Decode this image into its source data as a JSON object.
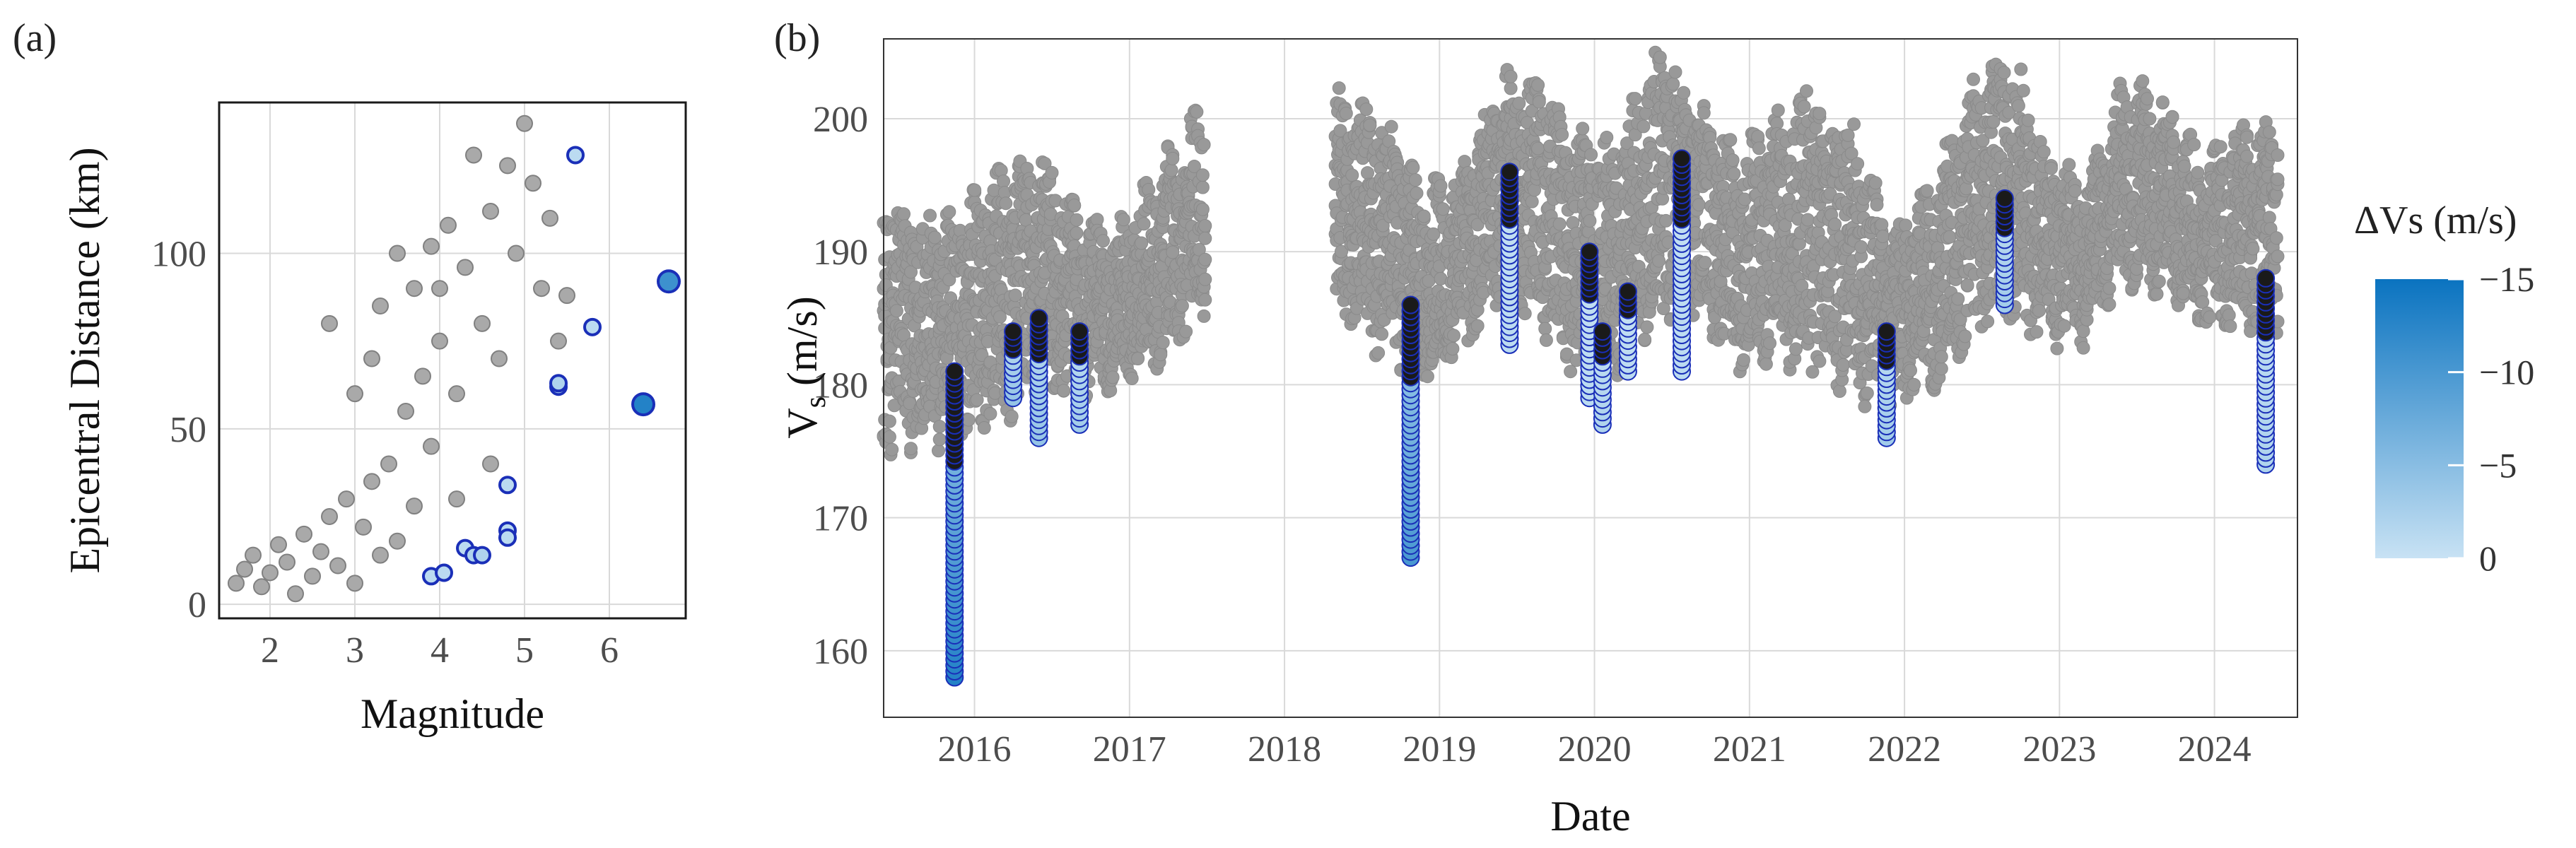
{
  "panels": {
    "a": {
      "label": "(a)"
    },
    "b": {
      "label": "(b)"
    }
  },
  "colors": {
    "background_points": "#a9a9a9",
    "background_stroke": "#808080",
    "panel_b_background_points": "#999999",
    "grid": "#d9d9d9",
    "frame": "#1a1a1a",
    "highlight_outline": "#1a2fb8",
    "colorbar_low": "#c8e2f4",
    "colorbar_high": "#0a73c0"
  },
  "chart_data": [
    {
      "type": "scatter",
      "panel": "(a)",
      "title": "",
      "xlabel": "Magnitude",
      "ylabel": "Epicentral Distance (km)",
      "xlim": [
        1.4,
        6.9
      ],
      "ylim": [
        -4,
        143
      ],
      "xticks": [
        2,
        3,
        4,
        5,
        6
      ],
      "yticks": [
        0,
        50,
        100
      ],
      "grid": true,
      "series": [
        {
          "role": "all events",
          "color": "#a9a9a9",
          "points": [
            [
              1.6,
              6
            ],
            [
              1.7,
              10
            ],
            [
              1.8,
              14
            ],
            [
              1.9,
              5
            ],
            [
              2.0,
              9
            ],
            [
              2.1,
              17
            ],
            [
              2.2,
              12
            ],
            [
              2.3,
              3
            ],
            [
              2.4,
              20
            ],
            [
              2.5,
              8
            ],
            [
              2.6,
              15
            ],
            [
              2.7,
              25
            ],
            [
              2.8,
              11
            ],
            [
              2.9,
              30
            ],
            [
              3.0,
              6
            ],
            [
              3.1,
              22
            ],
            [
              3.2,
              35
            ],
            [
              3.3,
              14
            ],
            [
              3.4,
              40
            ],
            [
              3.5,
              18
            ],
            [
              3.6,
              55
            ],
            [
              3.7,
              28
            ],
            [
              3.8,
              65
            ],
            [
              3.9,
              45
            ],
            [
              4.0,
              75
            ],
            [
              4.0,
              90
            ],
            [
              4.1,
              108
            ],
            [
              4.2,
              60
            ],
            [
              4.3,
              96
            ],
            [
              4.4,
              128
            ],
            [
              4.5,
              80
            ],
            [
              4.6,
              112
            ],
            [
              4.7,
              70
            ],
            [
              4.8,
              125
            ],
            [
              4.9,
              100
            ],
            [
              5.0,
              137
            ],
            [
              5.1,
              120
            ],
            [
              5.2,
              90
            ],
            [
              5.3,
              110
            ],
            [
              5.4,
              75
            ],
            [
              3.3,
              85
            ],
            [
              3.5,
              100
            ],
            [
              3.7,
              90
            ],
            [
              3.9,
              102
            ],
            [
              4.2,
              30
            ],
            [
              4.6,
              40
            ],
            [
              2.7,
              80
            ],
            [
              3.0,
              60
            ],
            [
              3.2,
              70
            ],
            [
              5.5,
              88
            ]
          ]
        },
        {
          "role": "highlighted events",
          "points": [
            {
              "x": 3.9,
              "y": 8,
              "dvs": 1
            },
            {
              "x": 4.05,
              "y": 9,
              "dvs": 1
            },
            {
              "x": 4.3,
              "y": 16,
              "dvs": 1
            },
            {
              "x": 4.4,
              "y": 14,
              "dvs": 2
            },
            {
              "x": 4.5,
              "y": 14,
              "dvs": 2
            },
            {
              "x": 4.8,
              "y": 34,
              "dvs": 1
            },
            {
              "x": 4.8,
              "y": 21,
              "dvs": 1
            },
            {
              "x": 4.8,
              "y": 19,
              "dvs": 1
            },
            {
              "x": 5.4,
              "y": 62,
              "dvs": 2
            },
            {
              "x": 5.4,
              "y": 63,
              "dvs": 2
            },
            {
              "x": 5.6,
              "y": 128,
              "dvs": 1
            },
            {
              "x": 5.8,
              "y": 79,
              "dvs": 1
            },
            {
              "x": 6.4,
              "y": 57,
              "dvs": 13
            },
            {
              "x": 6.7,
              "y": 92,
              "dvs": 11
            }
          ]
        }
      ]
    },
    {
      "type": "scatter",
      "panel": "(b)",
      "title": "",
      "xlabel": "Date",
      "ylabel": "Vs (m/s)",
      "xlim": [
        "2015-06-01",
        "2024-07-15"
      ],
      "ylim": [
        155,
        206
      ],
      "xticks": [
        "2016",
        "2017",
        "2018",
        "2019",
        "2020",
        "2021",
        "2022",
        "2023",
        "2024"
      ],
      "yticks": [
        160,
        170,
        180,
        190,
        200
      ],
      "grid": true,
      "series": [
        {
          "role": "Vs daily range",
          "color": "#999999",
          "bands": [
            [
              "2015-06-01",
              176,
              194
            ],
            [
              "2015-09-01",
              176,
              192
            ],
            [
              "2015-12-01",
              177,
              193
            ],
            [
              "2016-03-01",
              178,
              195
            ],
            [
              "2016-06-01",
              180,
              197
            ],
            [
              "2016-09-01",
              180,
              192
            ],
            [
              "2016-12-01",
              181,
              191
            ],
            [
              "2017-03-01",
              182,
              195
            ],
            [
              "2017-07-01",
              186,
              201
            ],
            [
              "2018-05-01",
              186,
              201
            ],
            [
              "2018-09-01",
              183,
              199
            ],
            [
              "2018-12-01",
              181,
              194
            ],
            [
              "2019-03-01",
              183,
              196
            ],
            [
              "2019-06-01",
              188,
              203
            ],
            [
              "2019-09-01",
              185,
              202
            ],
            [
              "2019-12-01",
              181,
              198
            ],
            [
              "2020-03-01",
              182,
              198
            ],
            [
              "2020-06-01",
              186,
              205
            ],
            [
              "2020-09-01",
              186,
              201
            ],
            [
              "2020-12-01",
              182,
              197
            ],
            [
              "2021-03-01",
              183,
              199
            ],
            [
              "2021-06-01",
              182,
              202
            ],
            [
              "2021-09-01",
              180,
              199
            ],
            [
              "2021-12-01",
              179,
              191
            ],
            [
              "2022-03-01",
              180,
              194
            ],
            [
              "2022-06-01",
              184,
              201
            ],
            [
              "2022-09-01",
              186,
              205
            ],
            [
              "2022-12-01",
              184,
              197
            ],
            [
              "2023-03-01",
              184,
              194
            ],
            [
              "2023-06-01",
              188,
              202
            ],
            [
              "2023-09-01",
              188,
              201
            ],
            [
              "2023-12-01",
              185,
              196
            ],
            [
              "2024-03-01",
              185,
              199
            ],
            [
              "2024-06-01",
              185,
              199
            ]
          ]
        },
        {
          "role": "post-event Vs",
          "clusters": [
            {
              "date": "2015-11-15",
              "vmin": 158,
              "vmax": 181,
              "dvs": 13
            },
            {
              "date": "2016-04-01",
              "vmin": 179,
              "vmax": 184,
              "dvs": 4
            },
            {
              "date": "2016-06-01",
              "vmin": 176,
              "vmax": 185,
              "dvs": 4
            },
            {
              "date": "2016-09-05",
              "vmin": 177,
              "vmax": 184,
              "dvs": 3
            },
            {
              "date": "2018-10-25",
              "vmin": 167,
              "vmax": 186,
              "dvs": 10
            },
            {
              "date": "2019-06-15",
              "vmin": 183,
              "vmax": 196,
              "dvs": 1
            },
            {
              "date": "2019-12-20",
              "vmin": 179,
              "vmax": 190,
              "dvs": 1
            },
            {
              "date": "2020-01-20",
              "vmin": 177,
              "vmax": 184,
              "dvs": 2
            },
            {
              "date": "2020-03-20",
              "vmin": 181,
              "vmax": 187,
              "dvs": 1
            },
            {
              "date": "2020-07-25",
              "vmin": 181,
              "vmax": 197,
              "dvs": 1
            },
            {
              "date": "2021-11-20",
              "vmin": 176,
              "vmax": 184,
              "dvs": 3
            },
            {
              "date": "2022-08-25",
              "vmin": 186,
              "vmax": 194,
              "dvs": 3
            },
            {
              "date": "2024-05-01",
              "vmin": 174,
              "vmax": 188,
              "dvs": 2
            }
          ]
        }
      ]
    }
  ],
  "colorbar": {
    "title": "ΔVs (m/s)",
    "ticks": [
      "−15",
      "−10",
      "−5",
      "0"
    ],
    "tick_values": [
      15,
      10,
      5,
      0
    ],
    "range": [
      0,
      15
    ]
  }
}
